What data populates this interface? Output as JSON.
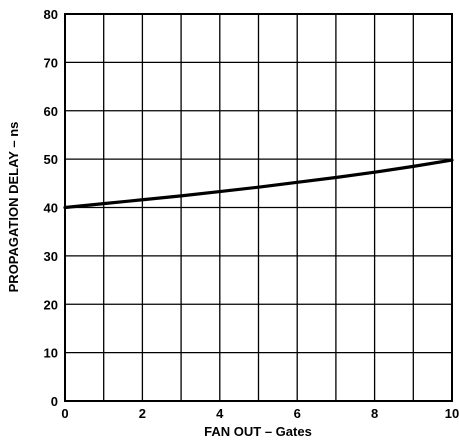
{
  "chart_data": {
    "type": "line",
    "title": "",
    "xlabel": "FAN OUT  – Gates",
    "ylabel": "PROPAGATION DELAY – ns",
    "xlim": [
      0,
      10
    ],
    "ylim": [
      0,
      80
    ],
    "x_ticks": [
      0,
      2,
      4,
      6,
      8,
      10
    ],
    "y_ticks": [
      0,
      10,
      20,
      30,
      40,
      50,
      60,
      70,
      80
    ],
    "x_tick_labels": [
      "0",
      "2",
      "4",
      "6",
      "8",
      "10"
    ],
    "y_tick_labels": [
      "0",
      "10",
      "20",
      "30",
      "40",
      "50",
      "60",
      "70",
      "80"
    ],
    "grid": true,
    "x_grid_step": 1,
    "y_grid_step": 10,
    "series": [
      {
        "x": [
          0,
          1,
          2,
          3,
          4,
          5,
          6,
          7,
          8,
          9,
          10
        ],
        "y": [
          40.0,
          40.8,
          41.6,
          42.4,
          43.3,
          44.2,
          45.2,
          46.2,
          47.3,
          48.5,
          49.8
        ]
      }
    ]
  }
}
